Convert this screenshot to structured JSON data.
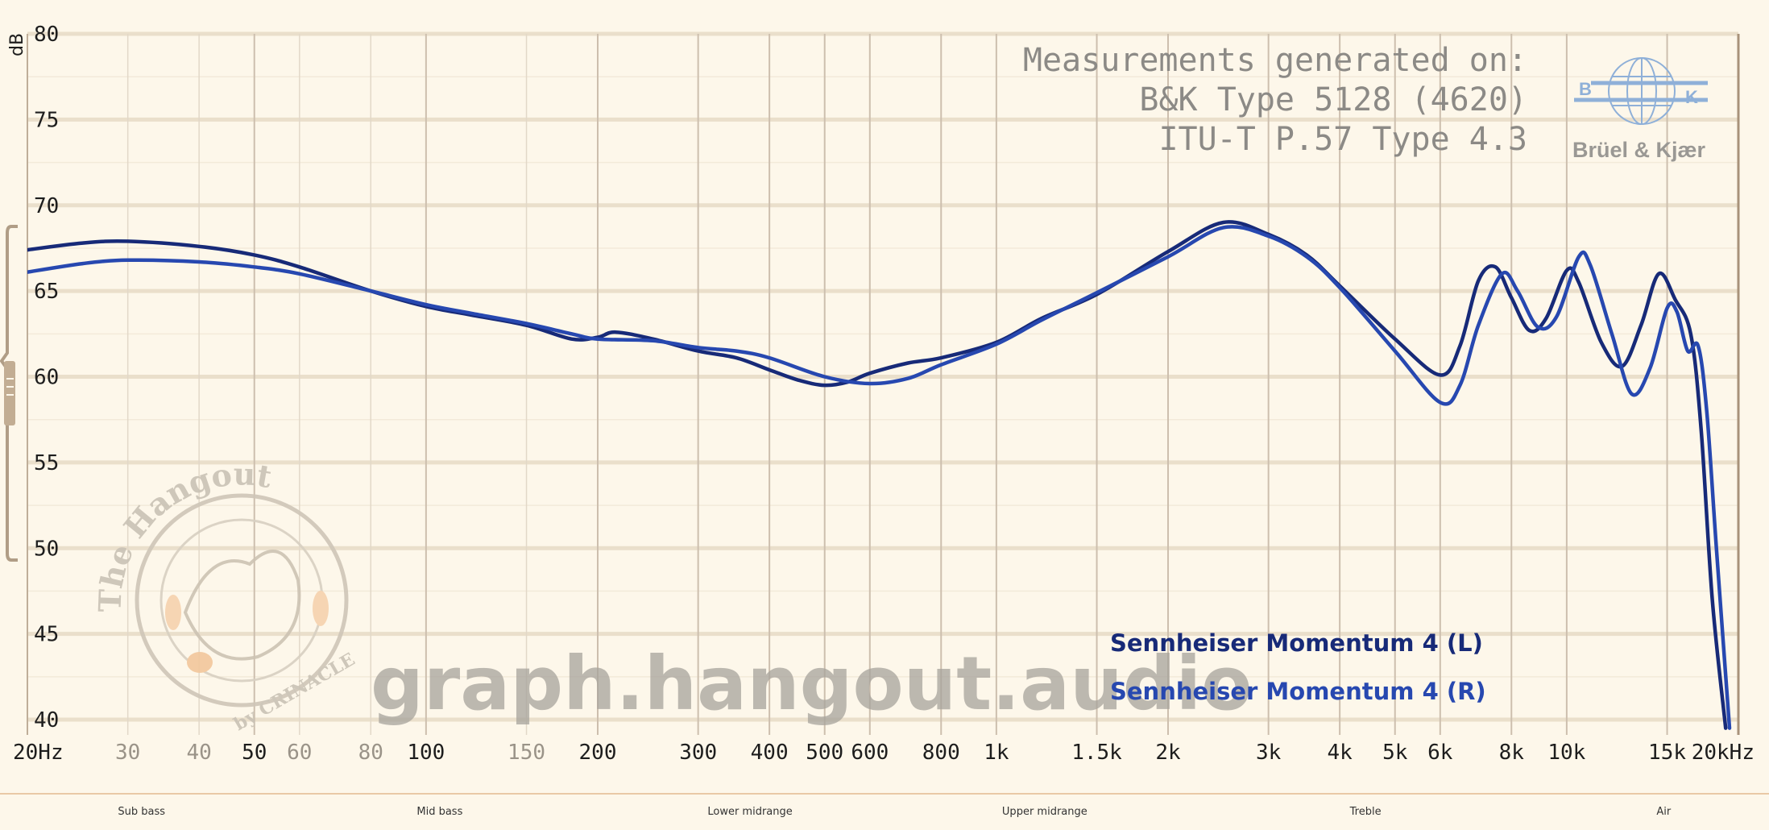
{
  "chart_data": {
    "type": "line",
    "xscale": "log",
    "xlim": [
      20,
      20000
    ],
    "ylim": [
      40,
      80
    ],
    "ylabel": "dB",
    "yticks": [
      40,
      45,
      50,
      55,
      60,
      65,
      70,
      75,
      80
    ],
    "xticks": [
      {
        "f": 20,
        "label": "20Hz",
        "major": true
      },
      {
        "f": 30,
        "label": "30",
        "major": false
      },
      {
        "f": 40,
        "label": "40",
        "major": false
      },
      {
        "f": 50,
        "label": "50",
        "major": true
      },
      {
        "f": 60,
        "label": "60",
        "major": false
      },
      {
        "f": 80,
        "label": "80",
        "major": false
      },
      {
        "f": 100,
        "label": "100",
        "major": true
      },
      {
        "f": 150,
        "label": "150",
        "major": false
      },
      {
        "f": 200,
        "label": "200",
        "major": true
      },
      {
        "f": 300,
        "label": "300",
        "major": true
      },
      {
        "f": 400,
        "label": "400",
        "major": true
      },
      {
        "f": 500,
        "label": "500",
        "major": true
      },
      {
        "f": 600,
        "label": "600",
        "major": true
      },
      {
        "f": 800,
        "label": "800",
        "major": true
      },
      {
        "f": 1000,
        "label": "1k",
        "major": true
      },
      {
        "f": 1500,
        "label": "1.5k",
        "major": true
      },
      {
        "f": 2000,
        "label": "2k",
        "major": true
      },
      {
        "f": 3000,
        "label": "3k",
        "major": true
      },
      {
        "f": 4000,
        "label": "4k",
        "major": true
      },
      {
        "f": 5000,
        "label": "5k",
        "major": true
      },
      {
        "f": 6000,
        "label": "6k",
        "major": true
      },
      {
        "f": 8000,
        "label": "8k",
        "major": true
      },
      {
        "f": 10000,
        "label": "10k",
        "major": true
      },
      {
        "f": 15000,
        "label": "15k",
        "major": true
      },
      {
        "f": 20000,
        "label": "20kHz",
        "major": true
      }
    ],
    "series": [
      {
        "name": "Sennheiser Momentum 4 (L)",
        "color": "#172a78",
        "points": [
          [
            20,
            67.4
          ],
          [
            25,
            67.8
          ],
          [
            30,
            67.9
          ],
          [
            40,
            67.6
          ],
          [
            50,
            67.1
          ],
          [
            60,
            66.4
          ],
          [
            80,
            65.0
          ],
          [
            100,
            64.1
          ],
          [
            120,
            63.6
          ],
          [
            150,
            63.0
          ],
          [
            180,
            62.2
          ],
          [
            200,
            62.3
          ],
          [
            215,
            62.6
          ],
          [
            250,
            62.2
          ],
          [
            300,
            61.5
          ],
          [
            350,
            61.1
          ],
          [
            400,
            60.4
          ],
          [
            450,
            59.8
          ],
          [
            500,
            59.5
          ],
          [
            550,
            59.7
          ],
          [
            600,
            60.2
          ],
          [
            700,
            60.8
          ],
          [
            800,
            61.1
          ],
          [
            1000,
            62.0
          ],
          [
            1200,
            63.4
          ],
          [
            1500,
            64.8
          ],
          [
            2000,
            67.3
          ],
          [
            2500,
            69.0
          ],
          [
            3000,
            68.3
          ],
          [
            3500,
            67.1
          ],
          [
            4000,
            65.3
          ],
          [
            5000,
            62.2
          ],
          [
            6000,
            60.1
          ],
          [
            6500,
            61.8
          ],
          [
            7000,
            65.6
          ],
          [
            7500,
            66.4
          ],
          [
            8000,
            64.6
          ],
          [
            8600,
            62.7
          ],
          [
            9200,
            63.4
          ],
          [
            10000,
            66.2
          ],
          [
            10500,
            65.5
          ],
          [
            11500,
            62.0
          ],
          [
            12500,
            60.6
          ],
          [
            13500,
            63.0
          ],
          [
            14500,
            66.0
          ],
          [
            15500,
            64.5
          ],
          [
            16500,
            62.5
          ],
          [
            17200,
            57.0
          ],
          [
            18000,
            47.0
          ],
          [
            19000,
            39.5
          ]
        ]
      },
      {
        "name": "Sennheiser Momentum 4 (R)",
        "color": "#2748b0",
        "points": [
          [
            20,
            66.1
          ],
          [
            25,
            66.6
          ],
          [
            30,
            66.8
          ],
          [
            40,
            66.7
          ],
          [
            50,
            66.4
          ],
          [
            60,
            66.0
          ],
          [
            80,
            65.0
          ],
          [
            100,
            64.2
          ],
          [
            120,
            63.7
          ],
          [
            150,
            63.1
          ],
          [
            180,
            62.5
          ],
          [
            200,
            62.2
          ],
          [
            250,
            62.1
          ],
          [
            300,
            61.7
          ],
          [
            350,
            61.5
          ],
          [
            400,
            61.1
          ],
          [
            500,
            60.0
          ],
          [
            600,
            59.6
          ],
          [
            700,
            59.9
          ],
          [
            800,
            60.7
          ],
          [
            1000,
            61.9
          ],
          [
            1200,
            63.3
          ],
          [
            1500,
            64.9
          ],
          [
            2000,
            67.0
          ],
          [
            2500,
            68.7
          ],
          [
            3000,
            68.2
          ],
          [
            3500,
            67.0
          ],
          [
            4000,
            65.2
          ],
          [
            5000,
            61.5
          ],
          [
            6000,
            58.5
          ],
          [
            6500,
            59.5
          ],
          [
            7000,
            63.0
          ],
          [
            7700,
            66.0
          ],
          [
            8200,
            65.0
          ],
          [
            8900,
            62.9
          ],
          [
            9600,
            63.5
          ],
          [
            10500,
            67.0
          ],
          [
            11000,
            66.5
          ],
          [
            12000,
            62.5
          ],
          [
            13000,
            59.0
          ],
          [
            14000,
            60.5
          ],
          [
            15000,
            64.0
          ],
          [
            15600,
            63.8
          ],
          [
            16300,
            61.5
          ],
          [
            17000,
            61.8
          ],
          [
            17600,
            58.0
          ],
          [
            18300,
            50.0
          ],
          [
            19300,
            39.5
          ]
        ]
      }
    ]
  },
  "measurement_note": {
    "line1": "Measurements generated on:",
    "line2": "B&K Type 5128 (4620)",
    "line3": "ITU-T P.57 Type 4.3"
  },
  "logo": {
    "name": "Brüel & Kjær",
    "letter_b": "B",
    "letter_k": "K"
  },
  "watermark": {
    "site": "graph.hangout.audio",
    "badge_top": "The Hangout",
    "badge_bottom": "by CRINACLE"
  },
  "bands": [
    {
      "label": "Sub bass",
      "f": 30
    },
    {
      "label": "Mid bass",
      "f": 100
    },
    {
      "label": "Lower midrange",
      "f": 350
    },
    {
      "label": "Upper midrange",
      "f": 1150
    },
    {
      "label": "Treble",
      "f": 4200
    },
    {
      "label": "Air",
      "f": 14000
    }
  ]
}
